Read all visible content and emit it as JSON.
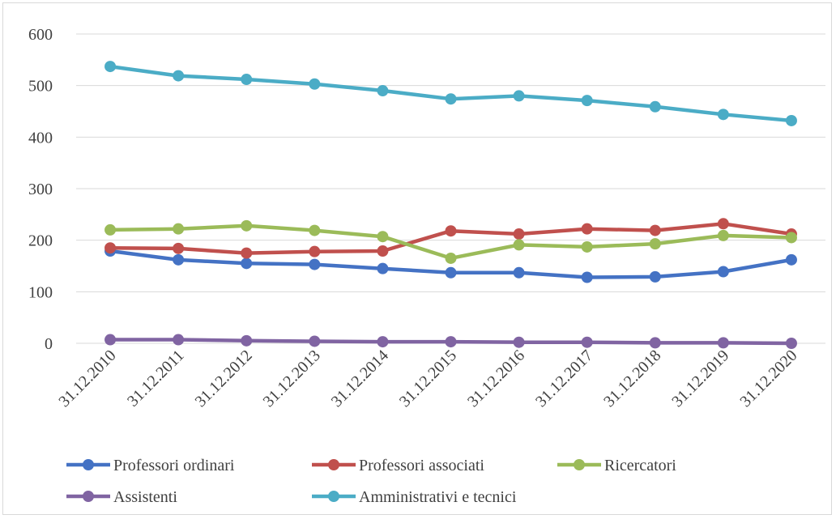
{
  "chart_data": {
    "type": "line",
    "title": "",
    "xlabel": "",
    "ylabel": "",
    "x": [
      "31.12.2010",
      "31.12.2011",
      "31.12.2012",
      "31.12.2013",
      "31.12.2014",
      "31.12.2015",
      "31.12.2016",
      "31.12.2017",
      "31.12.2018",
      "31.12.2019",
      "31.12.2020"
    ],
    "ylim": [
      0,
      600
    ],
    "yticks": [
      "0",
      "100",
      "200",
      "300",
      "400",
      "500",
      "600"
    ],
    "grid": true,
    "legend_position": "bottom",
    "series": [
      {
        "name": "Professori ordinari",
        "color": "#4472C4",
        "values": [
          179,
          162,
          155,
          153,
          145,
          137,
          137,
          128,
          129,
          139,
          162
        ]
      },
      {
        "name": "Professori associati",
        "color": "#C0504D",
        "values": [
          185,
          184,
          175,
          178,
          179,
          218,
          212,
          222,
          219,
          232,
          212
        ]
      },
      {
        "name": "Ricercatori",
        "color": "#9BBB59",
        "values": [
          220,
          222,
          228,
          219,
          207,
          165,
          191,
          187,
          193,
          209,
          205
        ]
      },
      {
        "name": "Assistenti",
        "color": "#8064A2",
        "values": [
          7,
          7,
          5,
          4,
          3,
          3,
          2,
          2,
          1,
          1,
          0
        ]
      },
      {
        "name": "Amministrativi e tecnici",
        "color": "#4BACC6",
        "values": [
          537,
          519,
          512,
          503,
          490,
          474,
          480,
          471,
          459,
          444,
          432
        ]
      }
    ]
  }
}
